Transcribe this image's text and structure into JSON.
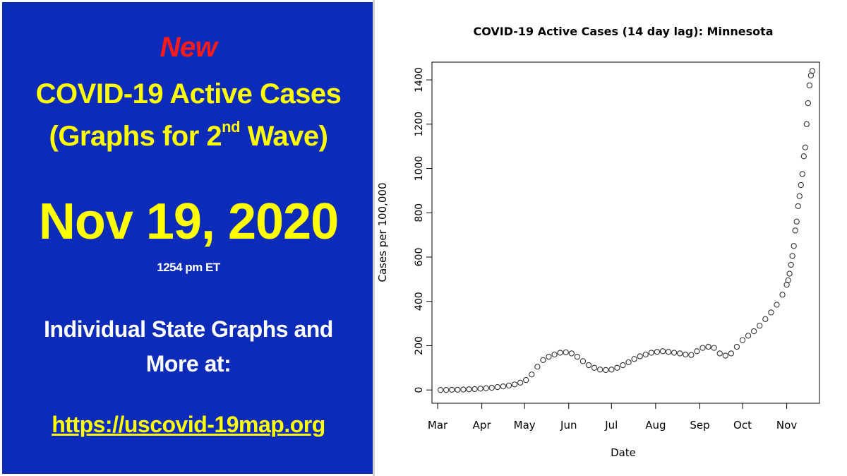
{
  "left": {
    "new_label": "New",
    "headline_line1": "COVID-19 Active Cases",
    "headline_line2_prefix": "(Graphs for 2",
    "headline_line2_sup": "nd",
    "headline_line2_suffix": " Wave)",
    "date": "Nov 19, 2020",
    "time": "1254 pm ET",
    "more_line1": "Individual State Graphs and",
    "more_line2": "More at:",
    "link": "https://uscovid-19map.org"
  },
  "colors": {
    "panel_bg": "#0b2bb8",
    "headline": "#ffff00",
    "new_label": "#ff1a1a",
    "body_text": "#ffffff",
    "points": "#333333"
  },
  "chart_data": {
    "type": "scatter",
    "title": "COVID-19 Active Cases (14 day lag): Minnesota",
    "xlabel": "Date",
    "ylabel": "Cases per 100,000",
    "x_ticks": [
      "2020-03-01",
      "2020-04-01",
      "2020-05-01",
      "2020-06-01",
      "2020-07-01",
      "2020-08-01",
      "2020-09-01",
      "2020-10-01",
      "2020-11-01"
    ],
    "x_tick_labels": [
      "Mar",
      "Apr",
      "May",
      "Jun",
      "Jul",
      "Aug",
      "Sep",
      "Oct",
      "Nov"
    ],
    "y_ticks": [
      0,
      200,
      400,
      600,
      800,
      1000,
      1200,
      1400
    ],
    "ylim": [
      -60,
      1480
    ],
    "xlim": [
      "2020-02-26",
      "2020-11-24"
    ],
    "grid": false,
    "legend": "none",
    "marker": "open-circle",
    "series": [
      {
        "points": [
          [
            "2020-03-03",
            0
          ],
          [
            "2020-03-07",
            0
          ],
          [
            "2020-03-11",
            1
          ],
          [
            "2020-03-15",
            1
          ],
          [
            "2020-03-19",
            2
          ],
          [
            "2020-03-23",
            3
          ],
          [
            "2020-03-27",
            4
          ],
          [
            "2020-03-31",
            6
          ],
          [
            "2020-04-04",
            8
          ],
          [
            "2020-04-08",
            10
          ],
          [
            "2020-04-12",
            13
          ],
          [
            "2020-04-16",
            16
          ],
          [
            "2020-04-20",
            20
          ],
          [
            "2020-04-24",
            25
          ],
          [
            "2020-04-28",
            33
          ],
          [
            "2020-05-02",
            45
          ],
          [
            "2020-05-06",
            70
          ],
          [
            "2020-05-10",
            105
          ],
          [
            "2020-05-14",
            135
          ],
          [
            "2020-05-18",
            150
          ],
          [
            "2020-05-22",
            160
          ],
          [
            "2020-05-26",
            168
          ],
          [
            "2020-05-30",
            170
          ],
          [
            "2020-06-03",
            165
          ],
          [
            "2020-06-07",
            150
          ],
          [
            "2020-06-11",
            130
          ],
          [
            "2020-06-15",
            112
          ],
          [
            "2020-06-19",
            100
          ],
          [
            "2020-06-23",
            92
          ],
          [
            "2020-06-27",
            90
          ],
          [
            "2020-07-01",
            92
          ],
          [
            "2020-07-05",
            100
          ],
          [
            "2020-07-09",
            112
          ],
          [
            "2020-07-13",
            125
          ],
          [
            "2020-07-17",
            140
          ],
          [
            "2020-07-21",
            152
          ],
          [
            "2020-07-25",
            160
          ],
          [
            "2020-07-29",
            168
          ],
          [
            "2020-08-02",
            172
          ],
          [
            "2020-08-06",
            175
          ],
          [
            "2020-08-10",
            172
          ],
          [
            "2020-08-14",
            168
          ],
          [
            "2020-08-18",
            165
          ],
          [
            "2020-08-22",
            160
          ],
          [
            "2020-08-26",
            158
          ],
          [
            "2020-08-30",
            175
          ],
          [
            "2020-09-03",
            190
          ],
          [
            "2020-09-07",
            195
          ],
          [
            "2020-09-11",
            190
          ],
          [
            "2020-09-15",
            165
          ],
          [
            "2020-09-19",
            155
          ],
          [
            "2020-09-23",
            165
          ],
          [
            "2020-09-27",
            195
          ],
          [
            "2020-10-01",
            225
          ],
          [
            "2020-10-05",
            245
          ],
          [
            "2020-10-09",
            265
          ],
          [
            "2020-10-13",
            290
          ],
          [
            "2020-10-17",
            320
          ],
          [
            "2020-10-21",
            350
          ],
          [
            "2020-10-25",
            385
          ],
          [
            "2020-10-29",
            430
          ],
          [
            "2020-11-01",
            475
          ],
          [
            "2020-11-02",
            495
          ],
          [
            "2020-11-03",
            525
          ],
          [
            "2020-11-04",
            565
          ],
          [
            "2020-11-05",
            605
          ],
          [
            "2020-11-06",
            650
          ],
          [
            "2020-11-07",
            720
          ],
          [
            "2020-11-08",
            760
          ],
          [
            "2020-11-09",
            830
          ],
          [
            "2020-11-10",
            875
          ],
          [
            "2020-11-11",
            925
          ],
          [
            "2020-11-12",
            975
          ],
          [
            "2020-11-13",
            1055
          ],
          [
            "2020-11-14",
            1095
          ],
          [
            "2020-11-15",
            1200
          ],
          [
            "2020-11-16",
            1295
          ],
          [
            "2020-11-17",
            1375
          ],
          [
            "2020-11-18",
            1420
          ],
          [
            "2020-11-19",
            1440
          ]
        ]
      }
    ]
  }
}
